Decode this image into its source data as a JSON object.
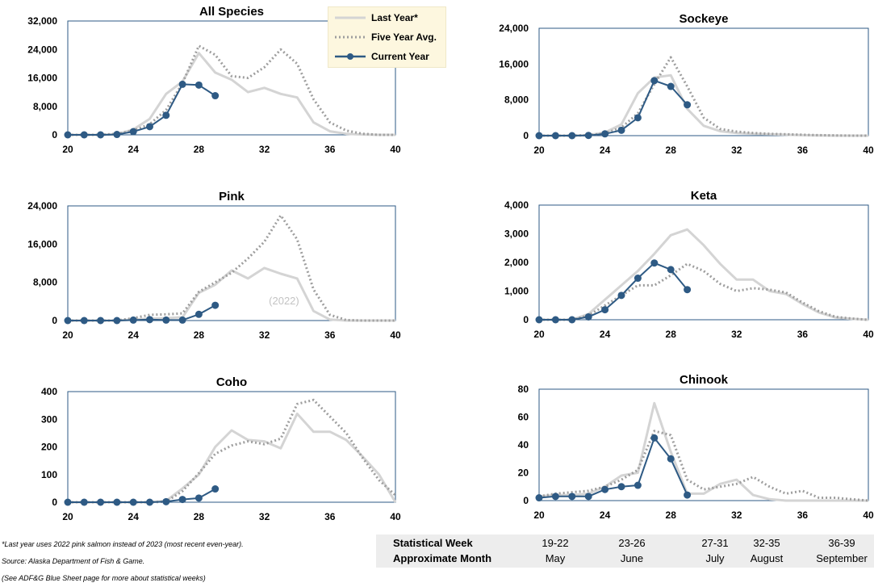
{
  "colors": {
    "last_year": "#d4d4d4",
    "five_year_avg": "#9e9e9e",
    "current_year": "#2e5a84",
    "frame": "#2e5a84"
  },
  "legend": {
    "last_year": "Last Year*",
    "five_year_avg": "Five Year Avg.",
    "current_year": "Current Year"
  },
  "chart_data": [
    {
      "type": "line",
      "title": "All Species",
      "xlim": [
        20,
        40
      ],
      "xticks": [
        "20",
        "24",
        "28",
        "32",
        "36",
        "40"
      ],
      "ylim": [
        0,
        32000
      ],
      "yticks": [
        "0",
        "8,000",
        "16,000",
        "24,000",
        "32,000"
      ],
      "annotation": "",
      "series": [
        {
          "name": "Last Year*",
          "x": [
            20,
            21,
            22,
            23,
            24,
            25,
            26,
            27,
            28,
            29,
            30,
            31,
            32,
            33,
            34,
            35,
            36,
            37,
            38,
            39,
            40
          ],
          "values": [
            0,
            0,
            0,
            200,
            1500,
            4500,
            11500,
            15000,
            23000,
            17500,
            15500,
            12000,
            13200,
            11500,
            10500,
            3500,
            1000,
            300,
            100,
            0,
            0
          ]
        },
        {
          "name": "Five Year Avg.",
          "x": [
            20,
            21,
            22,
            23,
            24,
            25,
            26,
            27,
            28,
            29,
            30,
            31,
            32,
            33,
            34,
            35,
            36,
            37,
            38,
            39,
            40
          ],
          "values": [
            0,
            0,
            0,
            300,
            1200,
            3000,
            7000,
            14500,
            25000,
            22500,
            16500,
            16000,
            19000,
            24000,
            20000,
            10000,
            3500,
            1200,
            300,
            0,
            0
          ]
        },
        {
          "name": "Current Year",
          "x": [
            20,
            21,
            22,
            23,
            24,
            25,
            26,
            27,
            28,
            29
          ],
          "values": [
            0,
            0,
            0,
            100,
            900,
            2300,
            5500,
            14200,
            14000,
            11000
          ]
        }
      ]
    },
    {
      "type": "line",
      "title": "Sockeye",
      "xlim": [
        20,
        40
      ],
      "xticks": [
        "20",
        "24",
        "28",
        "32",
        "36",
        "40"
      ],
      "ylim": [
        0,
        24000
      ],
      "yticks": [
        "0",
        "8,000",
        "16,000",
        "24,000"
      ],
      "annotation": "",
      "series": [
        {
          "name": "Last Year*",
          "x": [
            20,
            21,
            22,
            23,
            24,
            25,
            26,
            27,
            28,
            29,
            30,
            31,
            32,
            33,
            34,
            35,
            36,
            37,
            38,
            39,
            40
          ],
          "values": [
            0,
            0,
            0,
            100,
            700,
            2500,
            9500,
            13000,
            13500,
            6000,
            2200,
            1000,
            600,
            400,
            300,
            200,
            100,
            50,
            0,
            0,
            0
          ]
        },
        {
          "name": "Five Year Avg.",
          "x": [
            20,
            21,
            22,
            23,
            24,
            25,
            26,
            27,
            28,
            29,
            30,
            31,
            32,
            33,
            34,
            35,
            36,
            37,
            38,
            39,
            40
          ],
          "values": [
            0,
            0,
            0,
            100,
            500,
            1800,
            5000,
            11500,
            17500,
            11000,
            4000,
            1500,
            900,
            600,
            400,
            300,
            200,
            100,
            50,
            0,
            0
          ]
        },
        {
          "name": "Current Year",
          "x": [
            20,
            21,
            22,
            23,
            24,
            25,
            26,
            27,
            28,
            29
          ],
          "values": [
            0,
            0,
            0,
            50,
            400,
            1200,
            4000,
            12300,
            11000,
            6900
          ]
        }
      ]
    },
    {
      "type": "line",
      "title": "Pink",
      "xlim": [
        20,
        40
      ],
      "xticks": [
        "20",
        "24",
        "28",
        "32",
        "36",
        "40"
      ],
      "ylim": [
        0,
        24000
      ],
      "yticks": [
        "0",
        "8,000",
        "16,000",
        "24,000"
      ],
      "annotation": "(2022)",
      "series": [
        {
          "name": "Last Year*",
          "x": [
            20,
            21,
            22,
            23,
            24,
            25,
            26,
            27,
            28,
            29,
            30,
            31,
            32,
            33,
            34,
            35,
            36,
            37,
            38,
            39,
            40
          ],
          "values": [
            0,
            0,
            0,
            0,
            200,
            400,
            500,
            700,
            5800,
            7500,
            10500,
            8800,
            11000,
            9800,
            8800,
            2000,
            200,
            0,
            0,
            0,
            0
          ]
        },
        {
          "name": "Five Year Avg.",
          "x": [
            20,
            21,
            22,
            23,
            24,
            25,
            26,
            27,
            28,
            29,
            30,
            31,
            32,
            33,
            34,
            35,
            36,
            37,
            38,
            39,
            40
          ],
          "values": [
            0,
            0,
            0,
            0,
            500,
            1200,
            1300,
            1500,
            6000,
            8000,
            10000,
            13000,
            16500,
            22000,
            17000,
            6500,
            1200,
            100,
            0,
            0,
            0
          ]
        },
        {
          "name": "Current Year",
          "x": [
            20,
            21,
            22,
            23,
            24,
            25,
            26,
            27,
            28,
            29
          ],
          "values": [
            0,
            0,
            0,
            0,
            100,
            200,
            100,
            100,
            1300,
            3200
          ]
        }
      ]
    },
    {
      "type": "line",
      "title": "Keta",
      "xlim": [
        20,
        40
      ],
      "xticks": [
        "20",
        "24",
        "28",
        "32",
        "36",
        "40"
      ],
      "ylim": [
        0,
        4000
      ],
      "yticks": [
        "0",
        "1,000",
        "2,000",
        "3,000",
        "4,000"
      ],
      "annotation": "",
      "series": [
        {
          "name": "Last Year*",
          "x": [
            20,
            21,
            22,
            23,
            24,
            25,
            26,
            27,
            28,
            29,
            30,
            31,
            32,
            33,
            34,
            35,
            36,
            37,
            38,
            39,
            40
          ],
          "values": [
            0,
            0,
            0,
            200,
            700,
            1200,
            1700,
            2300,
            2950,
            3150,
            2600,
            1950,
            1400,
            1400,
            1000,
            900,
            550,
            250,
            80,
            30,
            0
          ]
        },
        {
          "name": "Five Year Avg.",
          "x": [
            20,
            21,
            22,
            23,
            24,
            25,
            26,
            27,
            28,
            29,
            30,
            31,
            32,
            33,
            34,
            35,
            36,
            37,
            38,
            39,
            40
          ],
          "values": [
            0,
            0,
            0,
            150,
            500,
            850,
            1200,
            1200,
            1550,
            1950,
            1700,
            1250,
            1000,
            1100,
            1050,
            950,
            600,
            300,
            100,
            40,
            0
          ]
        },
        {
          "name": "Current Year",
          "x": [
            20,
            21,
            22,
            23,
            24,
            25,
            26,
            27,
            28,
            29
          ],
          "values": [
            0,
            0,
            0,
            100,
            350,
            850,
            1450,
            1980,
            1750,
            1050
          ]
        }
      ]
    },
    {
      "type": "line",
      "title": "Coho",
      "xlim": [
        20,
        40
      ],
      "xticks": [
        "20",
        "24",
        "28",
        "32",
        "36",
        "40"
      ],
      "ylim": [
        0,
        400
      ],
      "yticks": [
        "0",
        "100",
        "200",
        "300",
        "400"
      ],
      "annotation": "",
      "series": [
        {
          "name": "Last Year*",
          "x": [
            20,
            21,
            22,
            23,
            24,
            25,
            26,
            27,
            28,
            29,
            30,
            31,
            32,
            33,
            34,
            35,
            36,
            37,
            38,
            39,
            40
          ],
          "values": [
            0,
            0,
            0,
            0,
            0,
            0,
            5,
            50,
            100,
            200,
            260,
            225,
            220,
            195,
            320,
            255,
            255,
            225,
            165,
            100,
            0
          ]
        },
        {
          "name": "Five Year Avg.",
          "x": [
            20,
            21,
            22,
            23,
            24,
            25,
            26,
            27,
            28,
            29,
            30,
            31,
            32,
            33,
            34,
            35,
            36,
            37,
            38,
            39,
            40
          ],
          "values": [
            0,
            0,
            0,
            0,
            0,
            0,
            2,
            40,
            105,
            175,
            205,
            220,
            210,
            230,
            355,
            370,
            310,
            250,
            160,
            80,
            25
          ]
        },
        {
          "name": "Current Year",
          "x": [
            20,
            21,
            22,
            23,
            24,
            25,
            26,
            27,
            28,
            29
          ],
          "values": [
            0,
            0,
            0,
            0,
            0,
            0,
            2,
            10,
            15,
            48
          ]
        }
      ]
    },
    {
      "type": "line",
      "title": "Chinook",
      "xlim": [
        20,
        40
      ],
      "xticks": [
        "20",
        "24",
        "28",
        "32",
        "36",
        "40"
      ],
      "ylim": [
        0,
        80
      ],
      "yticks": [
        "0",
        "20",
        "40",
        "60",
        "80"
      ],
      "annotation": "",
      "series": [
        {
          "name": "Last Year*",
          "x": [
            20,
            21,
            22,
            23,
            24,
            25,
            26,
            27,
            28,
            29,
            30,
            31,
            32,
            33,
            34,
            35,
            36,
            37,
            38,
            39,
            40
          ],
          "values": [
            3,
            4,
            4,
            5,
            10,
            18,
            20,
            70,
            35,
            5,
            5,
            12,
            15,
            4,
            1,
            0,
            0,
            0,
            0,
            0,
            0
          ]
        },
        {
          "name": "Five Year Avg.",
          "x": [
            20,
            21,
            22,
            23,
            24,
            25,
            26,
            27,
            28,
            29,
            30,
            31,
            32,
            33,
            34,
            35,
            36,
            37,
            38,
            39,
            40
          ],
          "values": [
            3,
            5,
            6,
            7,
            10,
            15,
            22,
            50,
            47,
            15,
            8,
            10,
            12,
            17,
            10,
            5,
            7,
            2,
            2,
            1,
            0
          ]
        },
        {
          "name": "Current Year",
          "x": [
            20,
            21,
            22,
            23,
            24,
            25,
            26,
            27,
            28,
            29
          ],
          "values": [
            2,
            3,
            3,
            3,
            8,
            10,
            11,
            45,
            30,
            4
          ]
        }
      ]
    }
  ],
  "footnotes": {
    "last_year_note": "*Last year uses 2022 pink salmon instead of 2023 (most recent even-year).",
    "source": "Source: Alaska Department of Fish & Game.",
    "see_also": "(See ADF&G Blue Sheet page for more about statistical weeks)"
  },
  "week_table": {
    "row1_label": "Statistical Week",
    "row2_label": "Approximate Month",
    "weeks": [
      "19-22",
      "23-26",
      "27-31",
      "32-35",
      "36-39"
    ],
    "months": [
      "May",
      "June",
      "July",
      "August",
      "September"
    ]
  }
}
